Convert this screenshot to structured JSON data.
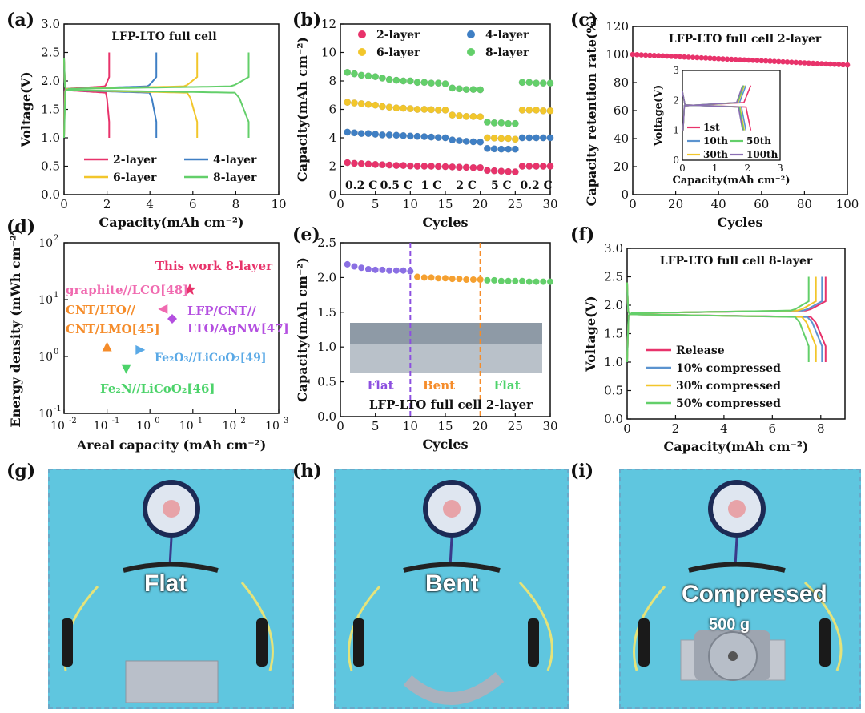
{
  "panels": {
    "a": "(a)",
    "b": "(b)",
    "c": "(c)",
    "d": "(d)",
    "e": "(e)",
    "f": "(f)",
    "g": "(g)",
    "h": "(h)",
    "i": "(i)"
  },
  "chart_data": [
    {
      "id": "a",
      "type": "line",
      "title": "LFP-LTO full cell",
      "xlabel": "Capacity(mAh cm⁻²)",
      "ylabel": "Voltage(V)",
      "xlim": [
        0,
        10
      ],
      "ylim": [
        0,
        3.0
      ],
      "xticks": [
        "0",
        "2",
        "4",
        "6",
        "8",
        "10"
      ],
      "yticks": [
        "0.0",
        "0.5",
        "1.0",
        "1.5",
        "2.0",
        "2.5",
        "3.0"
      ],
      "legend": "bottom",
      "series": [
        {
          "name": "2-layer",
          "color": "#e8336b",
          "capacity": 2.1
        },
        {
          "name": "4-layer",
          "color": "#3f7fc4",
          "capacity": 4.3
        },
        {
          "name": "6-layer",
          "color": "#f2c62b",
          "capacity": 6.2
        },
        {
          "name": "8-layer",
          "color": "#63cf6a",
          "capacity": 8.6
        }
      ]
    },
    {
      "id": "b",
      "type": "scatter",
      "xlabel": "Cycles",
      "ylabel": "Capacity(mAh cm⁻²)",
      "xlim": [
        0,
        30
      ],
      "ylim": [
        0,
        12
      ],
      "xticks": [
        "0",
        "5",
        "10",
        "15",
        "20",
        "25",
        "30"
      ],
      "yticks": [
        "0",
        "2",
        "4",
        "6",
        "8",
        "10",
        "12"
      ],
      "rate_labels": [
        "0.2 C",
        "0.5 C",
        "1 C",
        "2 C",
        "5 C",
        "0.2 C"
      ],
      "legend": "top",
      "series": [
        {
          "name": "2-layer",
          "color": "#e8336b",
          "values": [
            2.25,
            2.2,
            2.18,
            2.15,
            2.12,
            2.1,
            2.08,
            2.05,
            2.05,
            2.02,
            2.0,
            2.0,
            2.0,
            1.98,
            1.97,
            1.95,
            1.93,
            1.92,
            1.9,
            1.9,
            1.7,
            1.68,
            1.65,
            1.62,
            1.6,
            2.0,
            2.0,
            2.0,
            2.0,
            2.0
          ]
        },
        {
          "name": "4-layer",
          "color": "#3f7fc4",
          "values": [
            4.4,
            4.35,
            4.3,
            4.3,
            4.25,
            4.2,
            4.2,
            4.18,
            4.15,
            4.12,
            4.1,
            4.08,
            4.05,
            4.02,
            4.0,
            3.85,
            3.8,
            3.75,
            3.72,
            3.7,
            3.25,
            3.22,
            3.2,
            3.2,
            3.2,
            4.0,
            4.0,
            4.0,
            4.0,
            4.0
          ]
        },
        {
          "name": "6-layer",
          "color": "#f2c62b",
          "values": [
            6.5,
            6.45,
            6.4,
            6.35,
            6.3,
            6.2,
            6.15,
            6.1,
            6.08,
            6.05,
            6.0,
            6.0,
            5.98,
            5.95,
            5.95,
            5.6,
            5.55,
            5.5,
            5.5,
            5.48,
            4.0,
            3.98,
            3.95,
            3.95,
            3.9,
            5.95,
            5.95,
            5.95,
            5.9,
            5.9
          ]
        },
        {
          "name": "8-layer",
          "color": "#63cf6a",
          "values": [
            8.6,
            8.5,
            8.4,
            8.35,
            8.3,
            8.2,
            8.1,
            8.05,
            8.0,
            8.0,
            7.9,
            7.9,
            7.85,
            7.85,
            7.8,
            7.5,
            7.45,
            7.4,
            7.4,
            7.38,
            5.1,
            5.05,
            5.05,
            5.0,
            5.0,
            7.9,
            7.9,
            7.85,
            7.85,
            7.85
          ]
        }
      ]
    },
    {
      "id": "c",
      "type": "scatter",
      "title": "LFP-LTO full cell 2-layer",
      "xlabel": "Cycles",
      "ylabel": "Capacity retention rate(%)",
      "xlim": [
        0,
        100
      ],
      "ylim": [
        0,
        120
      ],
      "xticks": [
        "0",
        "20",
        "40",
        "60",
        "80",
        "100"
      ],
      "yticks": [
        "0",
        "20",
        "40",
        "60",
        "80",
        "100",
        "120"
      ],
      "series": [
        {
          "name": "",
          "color": "#e8336b",
          "start": 100,
          "end": 92.5
        }
      ],
      "inset": {
        "xlabel": "Capacity(mAh cm⁻²)",
        "ylabel": "Voltage(V)",
        "xlim": [
          0,
          3
        ],
        "ylim": [
          0,
          3
        ],
        "xticks": [
          "0",
          "1",
          "2",
          "3"
        ],
        "yticks": [
          "0",
          "1",
          "2",
          "3"
        ],
        "series": [
          {
            "name": "1st",
            "color": "#e8336b",
            "capacity": 2.1
          },
          {
            "name": "10th",
            "color": "#5b93cf",
            "capacity": 1.95
          },
          {
            "name": "30th",
            "color": "#f2c62b",
            "capacity": 1.9
          },
          {
            "name": "50th",
            "color": "#63cf6a",
            "capacity": 1.88
          },
          {
            "name": "100th",
            "color": "#8a6fb3",
            "capacity": 1.85
          }
        ]
      }
    },
    {
      "id": "d",
      "type": "scatter",
      "xlabel": "Areal capacity (mAh cm⁻²)",
      "ylabel": "Energy density (mWh cm⁻²)",
      "xscale": "log",
      "yscale": "log",
      "xlim": [
        0.01,
        1000
      ],
      "ylim": [
        0.1,
        100
      ],
      "points": [
        {
          "label": "This work 8-layer",
          "x": 8.5,
          "y": 15,
          "color": "#e8336b",
          "marker": "star"
        },
        {
          "label": "graphite//LCO[48]",
          "x": 2.0,
          "y": 6.8,
          "color": "#f06ab0",
          "marker": "triangle-left"
        },
        {
          "label": "LFP/CNT//LTO/AgNW[47]",
          "x": 3.3,
          "y": 4.6,
          "color": "#b44fe0",
          "marker": "diamond"
        },
        {
          "label": "CNT/LTO//CNT/LMO[45]",
          "x": 0.1,
          "y": 1.5,
          "color": "#f58c2a",
          "marker": "triangle"
        },
        {
          "label": "Fe₂O₃//LiCoO₂[49]",
          "x": 0.6,
          "y": 1.3,
          "color": "#5aa9e6",
          "marker": "triangle-right"
        },
        {
          "label": "Fe₂N//LiCoO₂[46]",
          "x": 0.28,
          "y": 0.6,
          "color": "#4cd36a",
          "marker": "triangle-down"
        }
      ]
    },
    {
      "id": "e",
      "type": "scatter",
      "xlabel": "Cycles",
      "ylabel": "Capacity(mAh cm⁻²)",
      "annotation": "LFP-LTO full cell 2-layer",
      "xlim": [
        0,
        30
      ],
      "ylim": [
        0,
        2.5
      ],
      "xticks": [
        "0",
        "5",
        "10",
        "15",
        "20",
        "25",
        "30"
      ],
      "yticks": [
        "0.0",
        "0.5",
        "1.0",
        "1.5",
        "2.0",
        "2.5"
      ],
      "state_labels": [
        {
          "text": "Flat",
          "color": "#8c4fe0"
        },
        {
          "text": "Bent",
          "color": "#f58c2a"
        },
        {
          "text": "Flat",
          "color": "#4cd36a"
        }
      ],
      "series": [
        {
          "name": "",
          "color": "#8a6fe3",
          "x": [
            1,
            2,
            3,
            4,
            5,
            6,
            7,
            8,
            9,
            10
          ],
          "values": [
            2.19,
            2.16,
            2.14,
            2.12,
            2.11,
            2.11,
            2.1,
            2.1,
            2.1,
            2.09
          ]
        },
        {
          "name": "",
          "color": "#f5a030",
          "x": [
            11,
            12,
            13,
            14,
            15,
            16,
            17,
            18,
            19,
            20
          ],
          "values": [
            2.01,
            2.0,
            2.0,
            1.99,
            1.99,
            1.98,
            1.98,
            1.97,
            1.97,
            1.97
          ]
        },
        {
          "name": "",
          "color": "#63cf6a",
          "x": [
            21,
            22,
            23,
            24,
            25,
            26,
            27,
            28,
            29,
            30
          ],
          "values": [
            1.96,
            1.96,
            1.95,
            1.95,
            1.95,
            1.95,
            1.94,
            1.94,
            1.94,
            1.94
          ]
        }
      ]
    },
    {
      "id": "f",
      "type": "line",
      "title": "LFP-LTO full cell 8-layer",
      "xlabel": "Capacity(mAh cm⁻²)",
      "ylabel": "Voltage(V)",
      "xlim": [
        0,
        9
      ],
      "ylim": [
        0,
        3.0
      ],
      "xticks": [
        "0",
        "2",
        "4",
        "6",
        "8"
      ],
      "yticks": [
        "0.0",
        "0.5",
        "1.0",
        "1.5",
        "2.0",
        "2.5",
        "3.0"
      ],
      "legend": "bottom-left",
      "series": [
        {
          "name": "Release",
          "color": "#e8336b",
          "capacity": 8.2
        },
        {
          "name": "10% compressed",
          "color": "#5b93cf",
          "capacity": 8.05
        },
        {
          "name": "30% compressed",
          "color": "#f2c62b",
          "capacity": 7.8
        },
        {
          "name": "50% compressed",
          "color": "#63cf6a",
          "capacity": 7.5
        }
      ]
    }
  ],
  "photos": {
    "g": {
      "label": "Flat"
    },
    "h": {
      "label": "Bent"
    },
    "i": {
      "label": "Compressed",
      "weight": "500 g"
    }
  }
}
